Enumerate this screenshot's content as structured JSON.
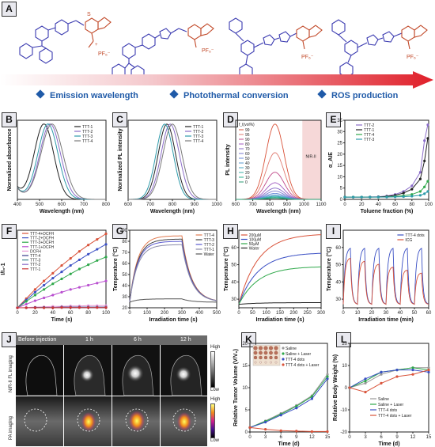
{
  "panel_labels": {
    "A": "A",
    "B": "B",
    "C": "C",
    "D": "D",
    "E": "E",
    "F": "F",
    "G": "G",
    "H": "H",
    "I": "I",
    "J": "J",
    "K": "K",
    "L": "L"
  },
  "molecules": {
    "pf_label": "PF₆⁻"
  },
  "bullets": [
    "Emission wavelength",
    "Photothermal conversion",
    "ROS production"
  ],
  "colors": {
    "ttt1": "#222222",
    "ttt2": "#8a6cc8",
    "ttt3": "#2e9bab",
    "ttt4": "#7a7a7a",
    "red": "#d9533a",
    "green": "#2ea84a",
    "blue": "#3a4fc4",
    "purple": "#b94fd0",
    "arrow_start": "#ffffff",
    "arrow_end": "#e0202a"
  },
  "chart_data": [
    {
      "id": "B",
      "type": "line",
      "xlabel": "Wavelength (nm)",
      "ylabel": "Normalized absorbance",
      "xlim": [
        400,
        800
      ],
      "ylim": [
        0,
        1.05
      ],
      "xticks": [
        400,
        500,
        600,
        700,
        800
      ],
      "series": [
        {
          "name": "TTT-1",
          "peak": 520,
          "width": 62,
          "color": "#222222"
        },
        {
          "name": "TTT-2",
          "peak": 548,
          "width": 66,
          "color": "#8a6cc8"
        },
        {
          "name": "TTT-3",
          "peak": 538,
          "width": 64,
          "color": "#2e9bab"
        },
        {
          "name": "TTT-4",
          "peak": 556,
          "width": 70,
          "color": "#7a7a7a"
        }
      ]
    },
    {
      "id": "C",
      "type": "line",
      "xlabel": "Wavelength (nm)",
      "ylabel": "Normalized PL intensity",
      "xlim": [
        600,
        1000
      ],
      "ylim": [
        0,
        1.05
      ],
      "xticks": [
        600,
        700,
        800,
        900,
        1000
      ],
      "series": [
        {
          "name": "TTT-1",
          "peak": 775,
          "width": 55,
          "color": "#222222"
        },
        {
          "name": "TTT-2",
          "peak": 790,
          "width": 58,
          "color": "#8a6cc8"
        },
        {
          "name": "TTT-3",
          "peak": 765,
          "width": 55,
          "color": "#2e9bab"
        },
        {
          "name": "TTT-4",
          "peak": 800,
          "width": 60,
          "color": "#7a7a7a"
        }
      ]
    },
    {
      "id": "D",
      "type": "line",
      "xlabel": "Wavelength (nm)",
      "ylabel": "PL intensity",
      "xlim": [
        600,
        1100
      ],
      "xticks": [
        600,
        700,
        800,
        900,
        1000,
        1100
      ],
      "legend_title": "f_t(vol%)",
      "annotation": "NIR-II",
      "series": [
        {
          "name": "99",
          "amp": 1.0
        },
        {
          "name": "95",
          "amp": 0.62
        },
        {
          "name": "90",
          "amp": 0.36
        },
        {
          "name": "80",
          "amp": 0.22
        },
        {
          "name": "70",
          "amp": 0.15
        },
        {
          "name": "60",
          "amp": 0.11
        },
        {
          "name": "50",
          "amp": 0.08
        },
        {
          "name": "40",
          "amp": 0.06
        },
        {
          "name": "30",
          "amp": 0.045
        },
        {
          "name": "20",
          "amp": 0.035
        },
        {
          "name": "10",
          "amp": 0.025
        },
        {
          "name": "0",
          "amp": 0.015
        }
      ]
    },
    {
      "id": "E",
      "type": "line",
      "xlabel": "Toluene fraction (%)",
      "ylabel": "α_AIE",
      "xlim": [
        0,
        100
      ],
      "ylim": [
        0,
        35
      ],
      "xticks": [
        0,
        20,
        40,
        60,
        80,
        100
      ],
      "yticks": [
        0,
        5,
        10,
        15,
        20,
        25,
        30,
        35
      ],
      "series": [
        {
          "name": "TTT-2",
          "color": "#8a6cc8",
          "x": [
            0,
            10,
            20,
            30,
            40,
            50,
            60,
            70,
            80,
            90,
            95,
            99
          ],
          "y": [
            1,
            1,
            1,
            1.1,
            1.2,
            1.5,
            2.2,
            3.5,
            6,
            12,
            26,
            33
          ]
        },
        {
          "name": "TTT-1",
          "color": "#222222",
          "x": [
            0,
            10,
            20,
            30,
            40,
            50,
            60,
            70,
            80,
            90,
            95,
            99
          ],
          "y": [
            1,
            1,
            1,
            1,
            1.1,
            1.3,
            1.8,
            2.8,
            4.5,
            9,
            17,
            27
          ]
        },
        {
          "name": "TTT-4",
          "color": "#2ea84a",
          "x": [
            0,
            10,
            20,
            30,
            40,
            50,
            60,
            70,
            80,
            90,
            95,
            99
          ],
          "y": [
            1,
            1,
            1,
            1,
            1,
            1.1,
            1.3,
            1.6,
            2.2,
            3.5,
            5.5,
            8
          ]
        },
        {
          "name": "TTT-3",
          "color": "#2e9bab",
          "x": [
            0,
            10,
            20,
            30,
            40,
            50,
            60,
            70,
            80,
            90,
            95,
            99
          ],
          "y": [
            1,
            1,
            1,
            1,
            1,
            1,
            1.1,
            1.2,
            1.4,
            1.8,
            2.5,
            3.5
          ]
        }
      ]
    },
    {
      "id": "F",
      "type": "line",
      "xlabel": "Time (s)",
      "ylabel": "I/I₀-1",
      "xlim": [
        0,
        100
      ],
      "ylim": [
        0,
        110
      ],
      "xticks": [
        0,
        20,
        40,
        60,
        80,
        100
      ],
      "series": [
        {
          "name": "TTT-4+DCFH",
          "color": "#d9533a",
          "x": [
            0,
            10,
            20,
            30,
            40,
            50,
            60,
            70,
            80,
            90,
            100
          ],
          "y": [
            0,
            13,
            26,
            38,
            49,
            60,
            70,
            80,
            89,
            97,
            105
          ]
        },
        {
          "name": "TTT-2+DCFH",
          "color": "#3a4fc4",
          "x": [
            0,
            10,
            20,
            30,
            40,
            50,
            60,
            70,
            80,
            90,
            100
          ],
          "y": [
            0,
            11,
            22,
            32,
            42,
            51,
            60,
            68,
            76,
            83,
            90
          ]
        },
        {
          "name": "TTT-3+DCFH",
          "color": "#2ea84a",
          "x": [
            0,
            10,
            20,
            30,
            40,
            50,
            60,
            70,
            80,
            90,
            100
          ],
          "y": [
            0,
            9,
            18,
            26,
            34,
            41,
            48,
            55,
            61,
            67,
            72
          ]
        },
        {
          "name": "TTT-1+DCFH",
          "color": "#b94fd0",
          "x": [
            0,
            10,
            20,
            30,
            40,
            50,
            60,
            70,
            80,
            90,
            100
          ],
          "y": [
            0,
            5,
            10,
            14,
            18,
            22,
            26,
            29,
            32,
            35,
            38
          ]
        },
        {
          "name": "DCFH",
          "color": "#e99ad6",
          "x": [
            0,
            10,
            20,
            30,
            40,
            50,
            60,
            70,
            80,
            90,
            100
          ],
          "y": [
            0,
            0.5,
            1,
            1.5,
            2,
            2,
            2.5,
            2.5,
            3,
            3,
            3
          ]
        },
        {
          "name": "TTT-4",
          "color": "#3a3a8c",
          "x": [
            0,
            10,
            20,
            30,
            40,
            50,
            60,
            70,
            80,
            90,
            100
          ],
          "y": [
            0,
            0,
            0.5,
            0.5,
            0.5,
            1,
            1,
            1,
            1,
            1,
            1
          ]
        },
        {
          "name": "TTT-3",
          "color": "#3b7f8c",
          "x": [
            0,
            10,
            20,
            30,
            40,
            50,
            60,
            70,
            80,
            90,
            100
          ],
          "y": [
            0,
            0,
            0,
            0.5,
            0.5,
            0.5,
            0.5,
            0.5,
            0.5,
            0.5,
            0.5
          ]
        },
        {
          "name": "TTT-2",
          "color": "#8a6cc8",
          "x": [
            0,
            10,
            20,
            30,
            40,
            50,
            60,
            70,
            80,
            90,
            100
          ],
          "y": [
            0,
            0,
            0,
            0,
            0.5,
            0.5,
            0.5,
            0.5,
            0.5,
            0.5,
            0.5
          ]
        },
        {
          "name": "TTT-1",
          "color": "#c33",
          "x": [
            0,
            10,
            20,
            30,
            40,
            50,
            60,
            70,
            80,
            90,
            100
          ],
          "y": [
            0,
            0,
            0,
            0,
            0,
            0.3,
            0.3,
            0.3,
            0.3,
            0.3,
            0.3
          ]
        }
      ]
    },
    {
      "id": "G",
      "type": "line",
      "xlabel": "Irradiation time (s)",
      "ylabel": "Temperature (°C)",
      "xlim": [
        0,
        500
      ],
      "ylim": [
        20,
        90
      ],
      "xticks": [
        0,
        100,
        200,
        300,
        400,
        500
      ],
      "yticks": [
        20,
        30,
        40,
        50,
        60,
        70,
        80,
        90
      ],
      "series": [
        {
          "name": "TTT-4",
          "color": "#e07a50",
          "max": 85
        },
        {
          "name": "TTT-3",
          "color": "#444444",
          "max": 82
        },
        {
          "name": "TTT-2",
          "color": "#5a5ad0",
          "max": 80
        },
        {
          "name": "TTT-1",
          "color": "#8a8aa8",
          "max": 77
        },
        {
          "name": "Water",
          "color": "#555555",
          "max": 28
        }
      ]
    },
    {
      "id": "H",
      "type": "line",
      "xlabel": "Irradiation time (s)",
      "ylabel": "Temperature (°C)",
      "xlim": [
        0,
        300
      ],
      "ylim": [
        25,
        70
      ],
      "xticks": [
        0,
        50,
        100,
        150,
        200,
        250,
        300
      ],
      "yticks": [
        30,
        40,
        50,
        60
      ],
      "series": [
        {
          "name": "200μM",
          "color": "#d9533a",
          "max": 68
        },
        {
          "name": "100μM",
          "color": "#3a4fc4",
          "max": 57
        },
        {
          "name": "50μM",
          "color": "#2ea84a",
          "max": 49
        },
        {
          "name": "Water",
          "color": "#222222",
          "max": 28
        }
      ]
    },
    {
      "id": "I",
      "type": "line",
      "xlabel": "Irradiation time (min)",
      "ylabel": "Temperature (°C)",
      "xlim": [
        0,
        60
      ],
      "ylim": [
        25,
        70
      ],
      "xticks": [
        0,
        10,
        20,
        30,
        40,
        50,
        60
      ],
      "yticks": [
        30,
        40,
        50,
        60
      ],
      "series": [
        {
          "name": "TTT-4 dots",
          "color": "#3a4fc4",
          "max": 60
        },
        {
          "name": "ICG",
          "color": "#d9533a",
          "max": 55
        }
      ]
    },
    {
      "id": "K",
      "type": "line",
      "xlabel": "Time (d)",
      "ylabel": "Relative Tumor Volume (V/V₀)",
      "xlim": [
        0,
        15
      ],
      "ylim": [
        0,
        20
      ],
      "xticks": [
        0,
        3,
        6,
        9,
        12,
        15
      ],
      "yticks": [
        0,
        5,
        10,
        15,
        20
      ],
      "series": [
        {
          "name": "Saline",
          "color": "#999999",
          "x": [
            0,
            3,
            6,
            9,
            12,
            15
          ],
          "y": [
            1,
            2.5,
            4.2,
            6,
            8.2,
            13
          ]
        },
        {
          "name": "Saline + Laser",
          "color": "#2ea84a",
          "x": [
            0,
            3,
            6,
            9,
            12,
            15
          ],
          "y": [
            1,
            2.4,
            4,
            5.8,
            8,
            12.5
          ]
        },
        {
          "name": "TTT-4 dots",
          "color": "#3a4fc4",
          "x": [
            0,
            3,
            6,
            9,
            12,
            15
          ],
          "y": [
            1,
            2.2,
            3.8,
            5.4,
            7.5,
            12
          ]
        },
        {
          "name": "TTT-4 dots + Laser",
          "color": "#d9533a",
          "x": [
            0,
            3,
            6,
            9,
            12,
            15
          ],
          "y": [
            1,
            0.6,
            0.3,
            0.2,
            0.1,
            0.1
          ]
        }
      ]
    },
    {
      "id": "L",
      "type": "line",
      "xlabel": "Time (d)",
      "ylabel": "Relative Body Weight (%)",
      "xlim": [
        0,
        15
      ],
      "ylim": [
        -20,
        20
      ],
      "xticks": [
        0,
        3,
        6,
        9,
        12,
        15
      ],
      "yticks": [
        -20,
        -10,
        0,
        10,
        20
      ],
      "series": [
        {
          "name": "Saline",
          "color": "#999999",
          "x": [
            0,
            3,
            6,
            9,
            12,
            15
          ],
          "y": [
            0,
            2,
            6,
            8,
            9,
            9
          ]
        },
        {
          "name": "Saline + Laser",
          "color": "#2ea84a",
          "x": [
            0,
            3,
            6,
            9,
            12,
            15
          ],
          "y": [
            0,
            3,
            7,
            8,
            9,
            8
          ]
        },
        {
          "name": "TTT-4 dots",
          "color": "#3a4fc4",
          "x": [
            0,
            3,
            6,
            9,
            12,
            15
          ],
          "y": [
            0,
            4,
            7,
            8,
            8,
            7
          ]
        },
        {
          "name": "TTT-4 dots + Laser",
          "color": "#d9533a",
          "x": [
            0,
            3,
            6,
            9,
            12,
            15
          ],
          "y": [
            0,
            -2,
            2,
            5,
            6,
            8
          ]
        }
      ]
    }
  ],
  "panel_j": {
    "timepoints": [
      "Before injection",
      "1 h",
      "6 h",
      "12 h"
    ],
    "row_labels": [
      "NIR-II FL imaging",
      "PA imaging"
    ],
    "colorbar_fl": {
      "high": "High",
      "low": "Low"
    },
    "colorbar_pa": {
      "high": "High",
      "low": "Low"
    }
  },
  "panel_k_legend": [
    "Saline",
    "Saline + Laser",
    "TTT-4 dots",
    "TTT-4 dots + Laser"
  ]
}
